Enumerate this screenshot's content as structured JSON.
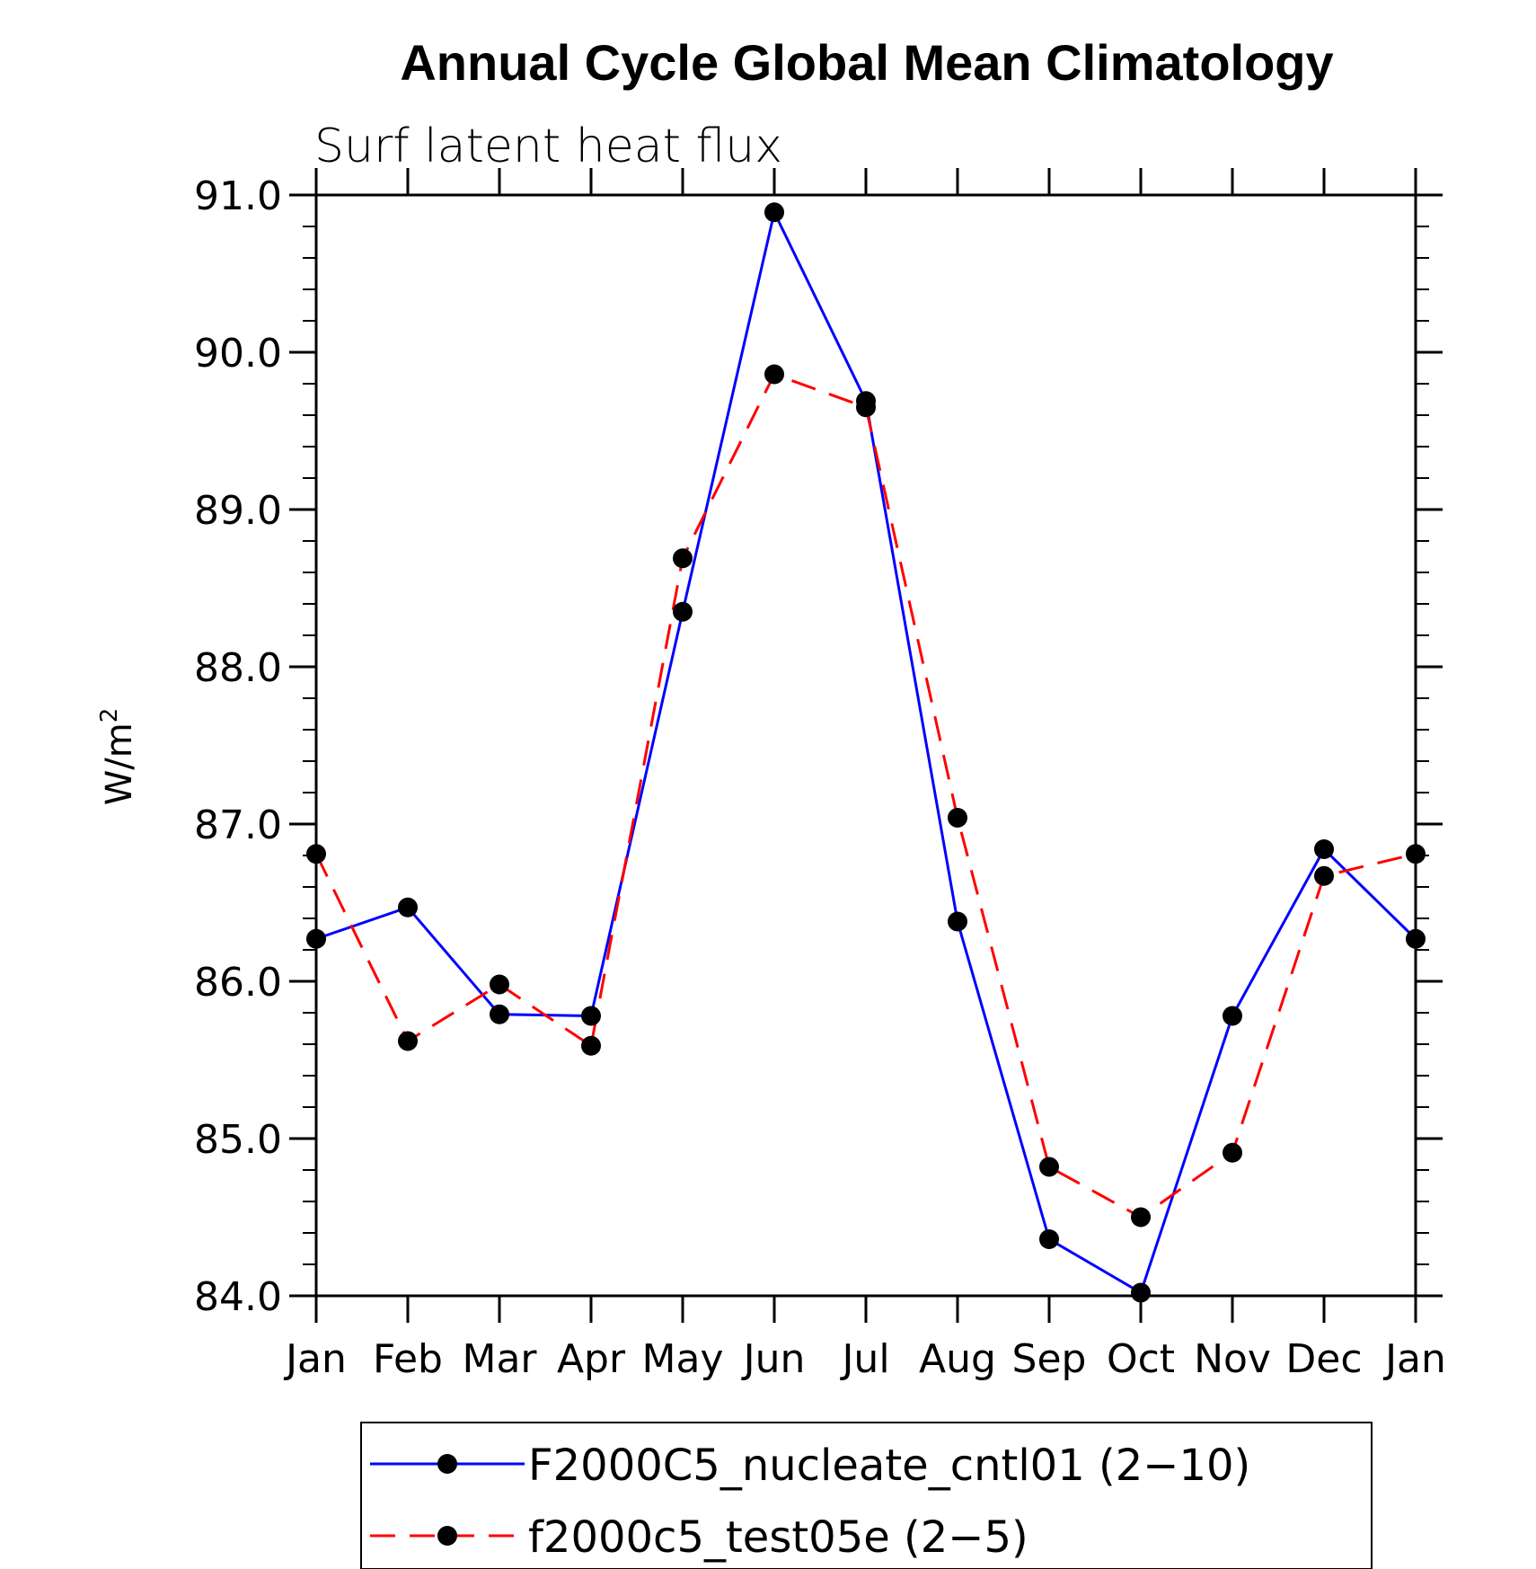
{
  "chart_data": {
    "type": "line",
    "title": "Annual Cycle Global Mean Climatology",
    "subtitle": "Surf latent heat flux",
    "xlabel": "",
    "ylabel": "W/m",
    "ylabel_superscript": "2",
    "categories": [
      "Jan",
      "Feb",
      "Mar",
      "Apr",
      "May",
      "Jun",
      "Jul",
      "Aug",
      "Sep",
      "Oct",
      "Nov",
      "Dec",
      "Jan"
    ],
    "ylim": [
      84.0,
      91.0
    ],
    "yticks": [
      "84.0",
      "85.0",
      "86.0",
      "87.0",
      "88.0",
      "89.0",
      "90.0",
      "91.0"
    ],
    "legend_position": "bottom",
    "series": [
      {
        "name": "F2000C5_nucleate_cntl01 (2−10)",
        "color": "#0000ff",
        "style": "solid",
        "values": [
          86.27,
          86.47,
          85.79,
          85.78,
          88.35,
          90.89,
          89.69,
          86.38,
          84.36,
          84.02,
          85.78,
          86.84,
          86.27
        ]
      },
      {
        "name": "f2000c5_test05e (2−5)",
        "color": "#ff0000",
        "style": "dashed",
        "values": [
          86.81,
          85.62,
          85.98,
          85.59,
          88.69,
          89.86,
          89.65,
          87.04,
          84.82,
          84.5,
          84.91,
          86.67,
          86.81
        ]
      }
    ]
  }
}
